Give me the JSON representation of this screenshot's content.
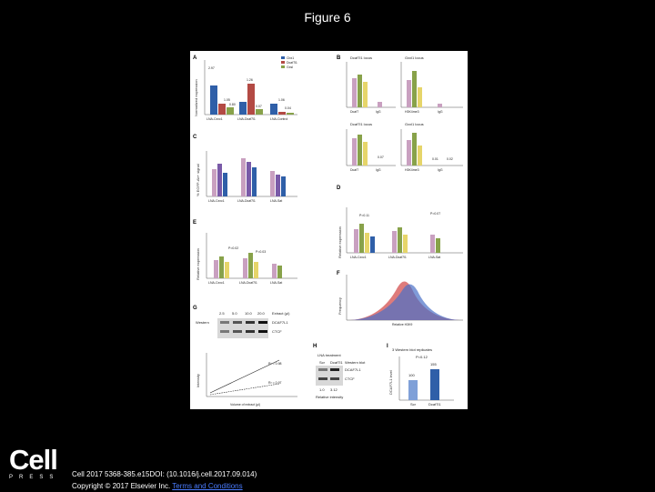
{
  "slide": {
    "title": "Figure 6",
    "logo_word": "Cell",
    "logo_sub": "PRESS",
    "citation_line1": "Cell 2017 5368-385.e15DOI: (10.1016/j.cell.2017.09.014)",
    "copyright": "Copyright © 2017 Elsevier Inc.",
    "terms_link": "Terms and Conditions"
  },
  "figure": {
    "panel_labels": [
      "A",
      "B",
      "C",
      "D",
      "E",
      "F",
      "G",
      "H",
      "I"
    ],
    "panelA": {
      "ylabel": "Normalized expression",
      "groups": [
        "LNA-Cxxc1",
        "LNA-Dcaf7l1",
        "LNA-Control"
      ],
      "legend": [
        "Cbx1",
        "Dcaf7l1",
        "Gxsl"
      ],
      "values": [
        "2.97",
        "1.05",
        "0.80",
        "1.26",
        "0.07",
        "1.06",
        "0.04"
      ]
    },
    "panelB": {
      "titles": [
        "Dcaf7l1 locus",
        "Gxxl1 locus",
        "Dcaf7l1 locus",
        "Gxxl1 locus"
      ],
      "xlabels": [
        "Dcaf7",
        "IgG",
        "H3K4me3",
        "IgG",
        "Dcaf7",
        "IgG",
        "H3K4me3",
        "IgG"
      ],
      "values": [
        "0.07",
        "0.01",
        "0.02"
      ]
    },
    "panelC": {
      "ylabel": "% EGFP-Ab+ signal",
      "groups": [
        "LNA-Cxxc1",
        "LNA-Dcaf7l1",
        "LNA-Sat"
      ]
    },
    "panelD": {
      "ylabel": "Relative expression",
      "groups": [
        "LNA-Cxxc1",
        "LNA-Dcaf7l1",
        "LNA-Sat"
      ],
      "pvalues": [
        "P=0.11",
        "P=0.07"
      ]
    },
    "panelE": {
      "ylabel": "Relative expression",
      "groups": [
        "LNA-Cxxc1",
        "LNA-Dcaf7l1",
        "LNA-Sat"
      ],
      "pvalues": [
        "P=0.02",
        "P=0.03"
      ]
    },
    "panelF": {
      "ylabel": "Frequency",
      "xlabel": "Relative H3K9"
    },
    "panelG": {
      "doses": [
        "2.5",
        "5.0",
        "10.0",
        "20.0"
      ],
      "dose_label": "Extract (µl)",
      "blot_label": "Western",
      "bands": [
        "DCAF7L1",
        "CTCF"
      ]
    },
    "panelGraph": {
      "r2_1": "R² = 0.98",
      "r2_2": "R² = 0.97",
      "xlabel": "Volume of extract (µl)",
      "ylabel": "Intensity"
    },
    "panelH": {
      "header": "LNA treatment",
      "lanes": [
        "Scr",
        "Dcaf7l1"
      ],
      "blot_label": "Western blot",
      "bands": [
        "DCAF7L1",
        "CTCF"
      ],
      "intensity": [
        "1.0",
        "3.12"
      ],
      "xlabel": "Relative intensity"
    },
    "panelI": {
      "title": "3 Western blot replicates",
      "ylabel": "DCAF7L1 level",
      "pvalue": "P=0.12",
      "values": [
        "100",
        "155"
      ],
      "groups": [
        "Scr",
        "Dcaf7l1"
      ]
    }
  }
}
